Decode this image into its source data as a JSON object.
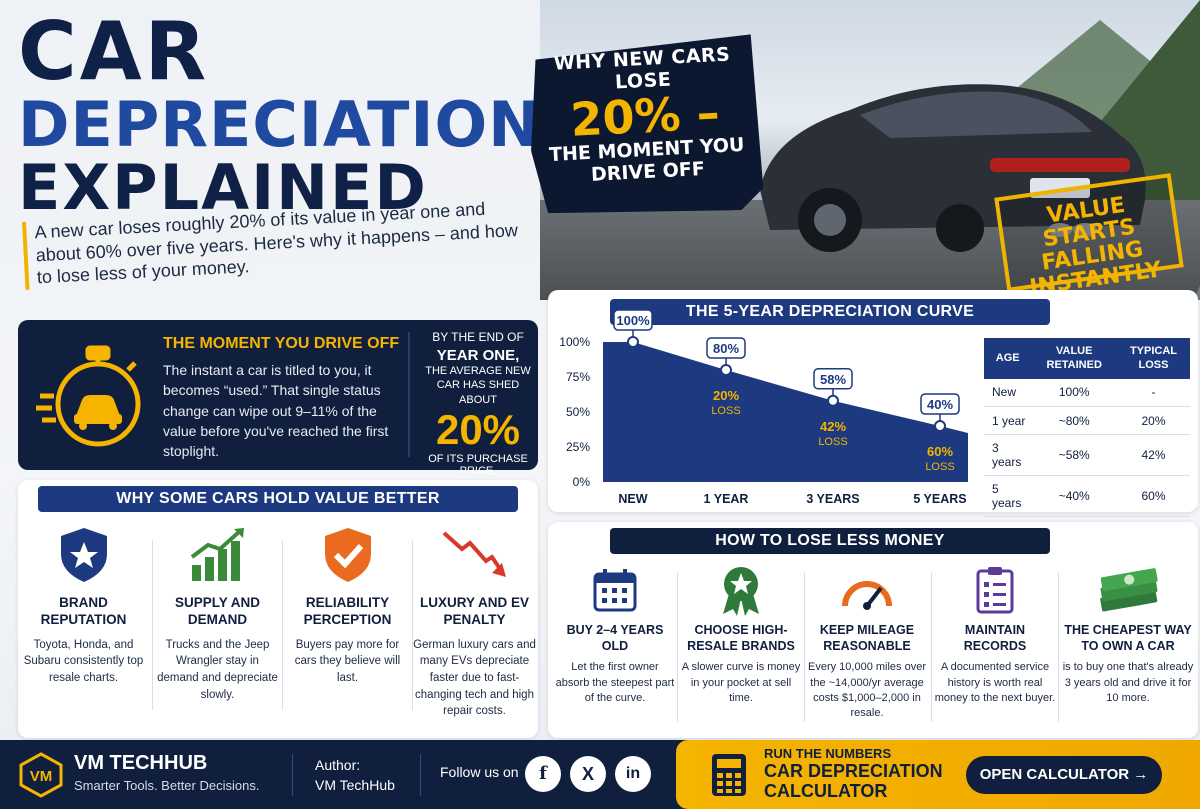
{
  "hero": {
    "title_line1": "CAR",
    "title_line2": "DEPRECIATION",
    "title_line3": "EXPLAINED",
    "subtitle": "A new car loses roughly 20% of its value in year one and about 60% over five years. Here's why it happens – and how to lose less of your money."
  },
  "callout": {
    "line1": "WHY NEW CARS LOSE",
    "big": "20% –",
    "line2": "THE MOMENT YOU DRIVE OFF"
  },
  "stamp": {
    "text": "VALUE STARTS FALLING INSTANTLY"
  },
  "moment": {
    "title": "THE MOMENT YOU DRIVE OFF",
    "body": "The instant a car is titled to you, it becomes “used.” That single status change can wipe out 9–11% of the value before you've reached the first stoplight.",
    "right_line1": "BY THE END OF",
    "right_line2": "YEAR ONE,",
    "right_line3": "THE AVERAGE NEW CAR HAS SHED ABOUT",
    "right_big": "20%",
    "right_line4": "OF ITS PURCHASE PRICE."
  },
  "why": {
    "heading": "WHY SOME CARS HOLD VALUE BETTER",
    "cards": [
      {
        "icon": "shield-star-icon",
        "title": "BRAND REPUTATION",
        "body": "Toyota, Honda, and Subaru consistently top resale charts."
      },
      {
        "icon": "rising-bars-icon",
        "title": "SUPPLY AND DEMAND",
        "body": "Trucks and the Jeep Wrangler stay in demand and depreciate slowly."
      },
      {
        "icon": "shield-check-icon",
        "title": "RELIABILITY PERCEPTION",
        "body": "Buyers pay more for cars they believe will last."
      },
      {
        "icon": "falling-arrow-icon",
        "title": "LUXURY AND EV PENALTY",
        "body": "German luxury cars and many EVs depreciate faster due to fast-changing tech and high repair costs."
      }
    ]
  },
  "chart_data": {
    "type": "area",
    "title": "THE 5-YEAR DEPRECIATION CURVE",
    "categories": [
      "NEW",
      "1 YEAR",
      "3 YEARS",
      "5 YEARS"
    ],
    "y_ticks": [
      "100%",
      "75%",
      "50%",
      "25%",
      "0%"
    ],
    "ylim": [
      0,
      100
    ],
    "values": [
      100,
      80,
      58,
      40
    ],
    "value_labels": [
      "100%",
      "80%",
      "58%",
      "40%"
    ],
    "loss_labels": [
      "",
      "20%",
      "42%",
      "60%"
    ],
    "loss_word": "LOSS",
    "color": "#1d3a80"
  },
  "table": {
    "headers": [
      "AGE",
      "VALUE RETAINED",
      "TYPICAL LOSS"
    ],
    "rows": [
      [
        "New",
        "100%",
        "-"
      ],
      [
        "1 year",
        "~80%",
        "20%"
      ],
      [
        "3 years",
        "~58%",
        "42%"
      ],
      [
        "5 years",
        "~40%",
        "60%"
      ]
    ]
  },
  "lose": {
    "heading": "HOW TO LOSE LESS MONEY",
    "cards": [
      {
        "icon": "calendar-icon",
        "title": "BUY 2–4 YEARS OLD",
        "body": "Let the first owner absorb the steepest part of the curve."
      },
      {
        "icon": "award-ribbon-icon",
        "title": "CHOOSE HIGH-RESALE BRANDS",
        "body": "A slower curve is money in your pocket at sell time."
      },
      {
        "icon": "speedometer-icon",
        "title": "KEEP MILEAGE REASONABLE",
        "body": "Every 10,000 miles over the ~14,000/yr average costs $1,000–2,000 in resale."
      },
      {
        "icon": "clipboard-checklist-icon",
        "title": "MAINTAIN RECORDS",
        "body": "A documented service history is worth real money to the next buyer."
      },
      {
        "icon": "money-stack-icon",
        "title": "THE CHEAPEST WAY TO OWN A CAR",
        "body": "is to buy one that's already 3 years old and drive it for 10 more."
      }
    ]
  },
  "footer": {
    "logo_text": "VM",
    "brand": "VM TECHHUB",
    "tagline": "Smarter Tools. Better Decisions.",
    "author_label": "Author:",
    "author_name": "VM TechHub",
    "follow": "Follow us on",
    "social": [
      "f",
      "X",
      "in"
    ],
    "cta_small": "RUN THE NUMBERS",
    "cta_big": "CAR DEPRECIATION CALCULATOR",
    "cta_button": "OPEN CALCULATOR →"
  },
  "colors": {
    "navy": "#0f1f3d",
    "blue": "#1d3a80",
    "accent": "#f5b400"
  }
}
